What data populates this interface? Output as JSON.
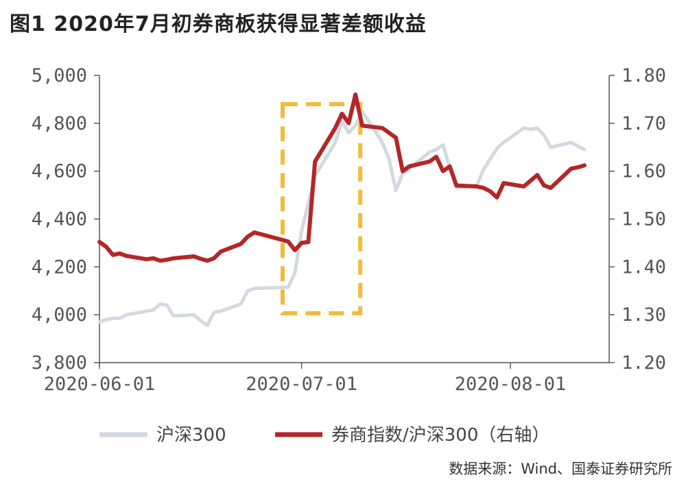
{
  "figure_title": "图1  2020年7月初券商板获得显著差额收益",
  "source": "数据来源：Wind、国泰证券研究所",
  "colors": {
    "hs300": "#d3d9e1",
    "ratio": "#b32728",
    "axis": "#555555",
    "highlight": "#f0bc3a"
  },
  "chart_data": {
    "type": "line",
    "title": "",
    "x_ticks": [
      "2020-06-01",
      "2020-07-01",
      "2020-08-01"
    ],
    "y_left": {
      "ticks": [
        "5,000",
        "4,800",
        "4,600",
        "4,400",
        "4,200",
        "4,000",
        "3,800"
      ],
      "ylim": [
        3800,
        5000
      ]
    },
    "y_right": {
      "ticks": [
        "1.80",
        "1.70",
        "1.60",
        "1.50",
        "1.40",
        "1.30",
        "1.20"
      ],
      "ylim": [
        1.2,
        1.8
      ]
    },
    "x_range": [
      "2020-06-01",
      "2020-08-12"
    ],
    "highlight": {
      "x_start": "2020-06-29",
      "x_end": "2020-07-09",
      "style": "dashed rectangle"
    },
    "legend": {
      "position": "bottom",
      "entries": [
        "沪深300",
        "券商指数/沪深300（右轴）"
      ]
    },
    "series": [
      {
        "name": "沪深300",
        "axis": "left",
        "x": [
          "2020-06-01",
          "2020-06-02",
          "2020-06-03",
          "2020-06-04",
          "2020-06-05",
          "2020-06-08",
          "2020-06-09",
          "2020-06-10",
          "2020-06-11",
          "2020-06-12",
          "2020-06-15",
          "2020-06-16",
          "2020-06-17",
          "2020-06-18",
          "2020-06-19",
          "2020-06-22",
          "2020-06-23",
          "2020-06-24",
          "2020-06-29",
          "2020-06-30",
          "2020-07-01",
          "2020-07-02",
          "2020-07-03",
          "2020-07-06",
          "2020-07-07",
          "2020-07-08",
          "2020-07-09",
          "2020-07-10",
          "2020-07-13",
          "2020-07-14",
          "2020-07-15",
          "2020-07-16",
          "2020-07-17",
          "2020-07-20",
          "2020-07-21",
          "2020-07-22",
          "2020-07-23",
          "2020-07-24",
          "2020-07-27",
          "2020-07-28",
          "2020-07-29",
          "2020-07-30",
          "2020-07-31",
          "2020-08-03",
          "2020-08-04",
          "2020-08-05",
          "2020-08-06",
          "2020-08-07",
          "2020-08-10",
          "2020-08-11",
          "2020-08-12"
        ],
        "values": [
          3970,
          3980,
          3985,
          3985,
          4000,
          4015,
          4020,
          4045,
          4040,
          3995,
          4000,
          3975,
          3955,
          4010,
          4015,
          4045,
          4100,
          4110,
          4115,
          4175,
          4350,
          4465,
          4580,
          4720,
          4810,
          4760,
          4790,
          4850,
          4720,
          4650,
          4520,
          4590,
          4610,
          4680,
          4690,
          4710,
          4615,
          4530,
          4540,
          4605,
          4650,
          4695,
          4720,
          4780,
          4775,
          4780,
          4750,
          4700,
          4720,
          4705,
          4690
        ]
      },
      {
        "name": "券商指数/沪深300（右轴）",
        "axis": "right",
        "x": [
          "2020-06-01",
          "2020-06-02",
          "2020-06-03",
          "2020-06-04",
          "2020-06-05",
          "2020-06-08",
          "2020-06-09",
          "2020-06-10",
          "2020-06-11",
          "2020-06-12",
          "2020-06-15",
          "2020-06-16",
          "2020-06-17",
          "2020-06-18",
          "2020-06-19",
          "2020-06-22",
          "2020-06-23",
          "2020-06-24",
          "2020-06-29",
          "2020-06-30",
          "2020-07-01",
          "2020-07-02",
          "2020-07-03",
          "2020-07-06",
          "2020-07-07",
          "2020-07-08",
          "2020-07-09",
          "2020-07-10",
          "2020-07-13",
          "2020-07-14",
          "2020-07-15",
          "2020-07-16",
          "2020-07-17",
          "2020-07-20",
          "2020-07-21",
          "2020-07-22",
          "2020-07-23",
          "2020-07-24",
          "2020-07-27",
          "2020-07-28",
          "2020-07-29",
          "2020-07-30",
          "2020-07-31",
          "2020-08-03",
          "2020-08-04",
          "2020-08-05",
          "2020-08-06",
          "2020-08-07",
          "2020-08-10",
          "2020-08-11",
          "2020-08-12"
        ],
        "values": [
          1.452,
          1.442,
          1.425,
          1.428,
          1.423,
          1.416,
          1.418,
          1.413,
          1.415,
          1.418,
          1.422,
          1.417,
          1.413,
          1.418,
          1.432,
          1.448,
          1.463,
          1.472,
          1.453,
          1.435,
          1.45,
          1.452,
          1.62,
          1.69,
          1.72,
          1.7,
          1.76,
          1.695,
          1.69,
          1.68,
          1.67,
          1.6,
          1.61,
          1.62,
          1.63,
          1.6,
          1.61,
          1.57,
          1.568,
          1.565,
          1.558,
          1.545,
          1.575,
          1.568,
          1.58,
          1.592,
          1.57,
          1.565,
          1.605,
          1.608,
          1.612
        ]
      }
    ]
  }
}
